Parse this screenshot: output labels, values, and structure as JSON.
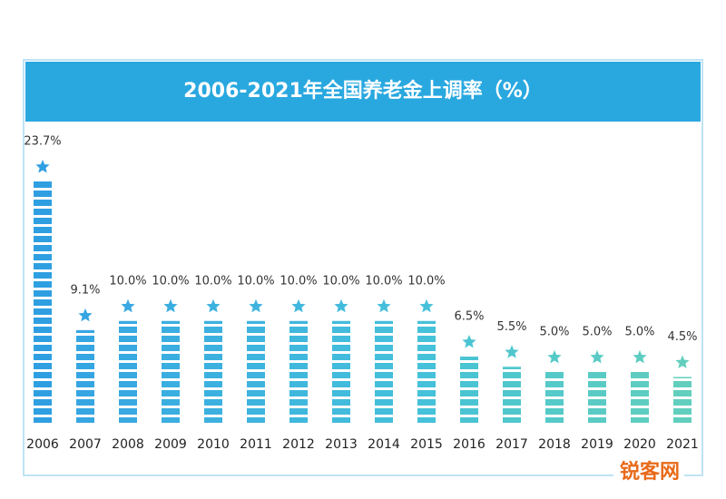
{
  "chart_data": {
    "type": "bar",
    "title": "2006-2021年全国养老金上调率（%）",
    "categories": [
      "2006",
      "2007",
      "2008",
      "2009",
      "2010",
      "2011",
      "2012",
      "2013",
      "2014",
      "2015",
      "2016",
      "2017",
      "2018",
      "2019",
      "2020",
      "2021"
    ],
    "values": [
      23.7,
      9.1,
      10.0,
      10.0,
      10.0,
      10.0,
      10.0,
      10.0,
      10.0,
      10.0,
      6.5,
      5.5,
      5.0,
      5.0,
      5.0,
      4.5
    ],
    "value_labels": [
      "23.7%",
      "9.1%",
      "10.0%",
      "10.0%",
      "10.0%",
      "10.0%",
      "10.0%",
      "10.0%",
      "10.0%",
      "10.0%",
      "6.5%",
      "5.5%",
      "5.0%",
      "5.0%",
      "5.0%",
      "4.5%"
    ],
    "colors": [
      "#2f9fe2",
      "#36a6e2",
      "#38a9e1",
      "#3aaee0",
      "#3cb1df",
      "#3eb4de",
      "#40b7dd",
      "#42bbdc",
      "#44bedb",
      "#46c1da",
      "#4ac4d2",
      "#50c7cc",
      "#55cac8",
      "#5acbc4",
      "#5ecdc1",
      "#62cfbe"
    ],
    "watermark": "锐客网"
  }
}
